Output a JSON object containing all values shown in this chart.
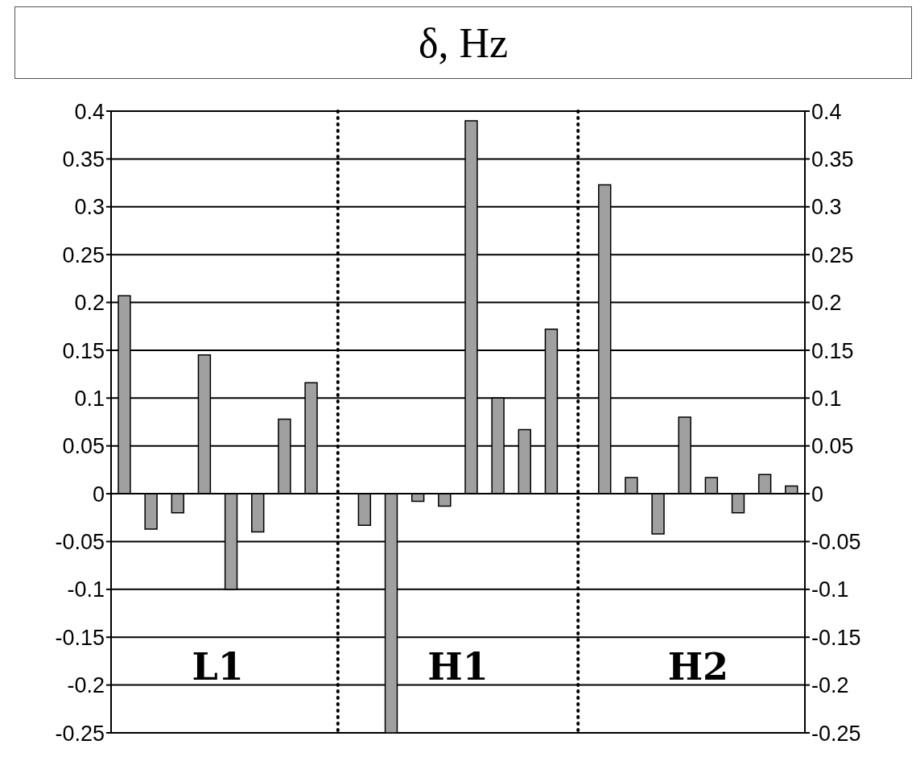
{
  "chart_data": {
    "type": "bar",
    "title": "δ, Hz",
    "categories": [
      null,
      null,
      null,
      null,
      null,
      null,
      null,
      null,
      null,
      null,
      null,
      null,
      null,
      null,
      null,
      null,
      null,
      null,
      null,
      null,
      null,
      null,
      null,
      null,
      null,
      null
    ],
    "values": [
      0.207,
      -0.037,
      -0.02,
      0.145,
      -0.1,
      -0.04,
      0.078,
      0.116,
      null,
      -0.033,
      -0.25,
      -0.008,
      -0.013,
      0.39,
      0.1,
      0.067,
      0.172,
      null,
      0.323,
      0.017,
      -0.042,
      0.08,
      0.017,
      -0.02,
      0.02,
      0.008
    ],
    "color": "#a0a0a0",
    "ylim": [
      -0.25,
      0.4
    ],
    "yticks": [
      -0.25,
      -0.2,
      -0.15,
      -0.1,
      -0.05,
      0,
      0.05,
      0.1,
      0.15,
      0.2,
      0.25,
      0.3,
      0.35,
      0.4
    ],
    "y2lim": [
      -0.25,
      0.4
    ],
    "y2ticks": [
      -0.25,
      -0.2,
      -0.15,
      -0.1,
      -0.05,
      0,
      0.05,
      0.1,
      0.15,
      0.2,
      0.25,
      0.3,
      0.35,
      0.4
    ],
    "grid": "y",
    "legend": false,
    "tick_labels": "y",
    "annotations": [
      "L1",
      "H1",
      "H2"
    ]
  }
}
